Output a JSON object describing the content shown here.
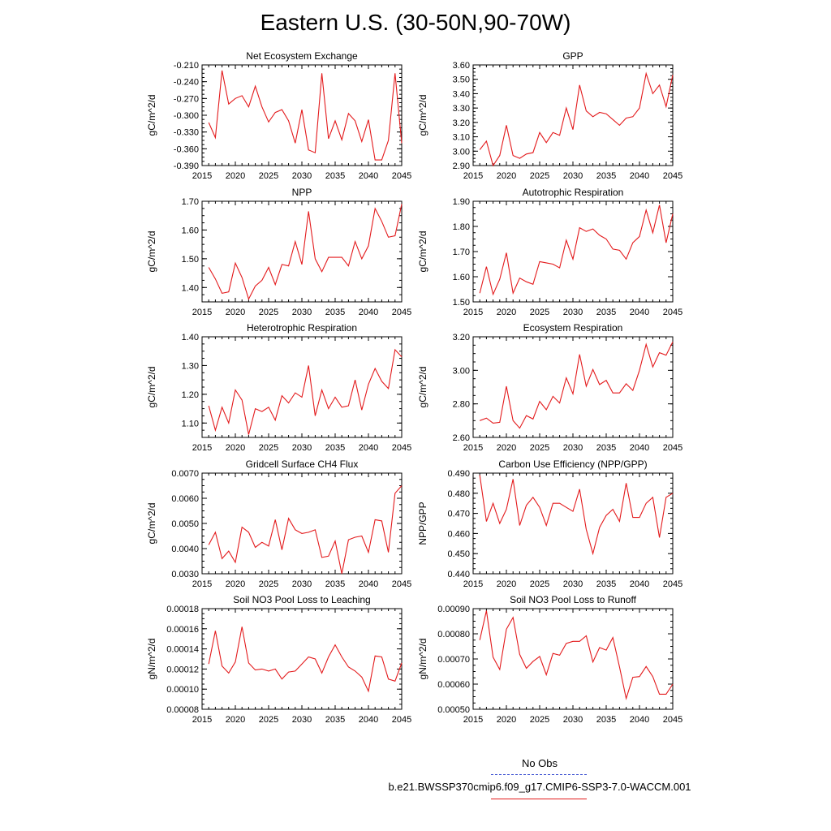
{
  "title": "Eastern U.S. (30-50N,90-70W)",
  "legend": {
    "obs_label": "No Obs",
    "run_label": "b.e21.BWSSP370cmip6.f09_g17.CMIP6-SSP3-7.0-WACCM.001",
    "obs_color": "#3a4fd0",
    "run_color": "#e31a1c"
  },
  "chart_data": [
    {
      "type": "line",
      "title": "Net Ecosystem Exchange",
      "ylabel": "gC/m^2/d",
      "xlim": [
        2015,
        2045
      ],
      "ylim": [
        -0.39,
        -0.21
      ],
      "xticks": [
        "2015",
        "2020",
        "2025",
        "2030",
        "2035",
        "2040",
        "2045"
      ],
      "yticks": [
        "-0.390",
        "-0.360",
        "-0.330",
        "-0.300",
        "-0.270",
        "-0.240",
        "-0.210"
      ],
      "x": [
        2016,
        2017,
        2018,
        2019,
        2020,
        2021,
        2022,
        2023,
        2024,
        2025,
        2026,
        2027,
        2028,
        2029,
        2030,
        2031,
        2032,
        2033,
        2034,
        2035,
        2036,
        2037,
        2038,
        2039,
        2040,
        2041,
        2042,
        2043,
        2044,
        2045
      ],
      "values": [
        -0.313,
        -0.34,
        -0.22,
        -0.28,
        -0.27,
        -0.265,
        -0.285,
        -0.248,
        -0.285,
        -0.312,
        -0.295,
        -0.29,
        -0.31,
        -0.35,
        -0.29,
        -0.362,
        -0.367,
        -0.225,
        -0.342,
        -0.31,
        -0.344,
        -0.297,
        -0.31,
        -0.347,
        -0.308,
        -0.38,
        -0.38,
        -0.345,
        -0.225,
        -0.35
      ]
    },
    {
      "type": "line",
      "title": "GPP",
      "ylabel": "gC/m^2/d",
      "xlim": [
        2015,
        2045
      ],
      "ylim": [
        2.9,
        3.6
      ],
      "xticks": [
        "2015",
        "2020",
        "2025",
        "2030",
        "2035",
        "2040",
        "2045"
      ],
      "yticks": [
        "2.90",
        "3.00",
        "3.10",
        "3.20",
        "3.30",
        "3.40",
        "3.50",
        "3.60"
      ],
      "x": [
        2016,
        2017,
        2018,
        2019,
        2020,
        2021,
        2022,
        2023,
        2024,
        2025,
        2026,
        2027,
        2028,
        2029,
        2030,
        2031,
        2032,
        2033,
        2034,
        2035,
        2036,
        2037,
        2038,
        2039,
        2040,
        2041,
        2042,
        2043,
        2044,
        2045
      ],
      "values": [
        3.01,
        3.07,
        2.9,
        2.97,
        3.18,
        2.97,
        2.95,
        2.98,
        2.99,
        3.13,
        3.06,
        3.13,
        3.11,
        3.3,
        3.15,
        3.46,
        3.28,
        3.24,
        3.27,
        3.26,
        3.22,
        3.18,
        3.23,
        3.24,
        3.3,
        3.54,
        3.4,
        3.46,
        3.31,
        3.53
      ]
    },
    {
      "type": "line",
      "title": "NPP",
      "ylabel": "gC/m^2/d",
      "xlim": [
        2015,
        2045
      ],
      "ylim": [
        1.35,
        1.7
      ],
      "xticks": [
        "2015",
        "2020",
        "2025",
        "2030",
        "2035",
        "2040",
        "2045"
      ],
      "yticks": [
        "1.40",
        "1.50",
        "1.60",
        "1.70"
      ],
      "x": [
        2016,
        2017,
        2018,
        2019,
        2020,
        2021,
        2022,
        2023,
        2024,
        2025,
        2026,
        2027,
        2028,
        2029,
        2030,
        2031,
        2032,
        2033,
        2034,
        2035,
        2036,
        2037,
        2038,
        2039,
        2040,
        2041,
        2042,
        2043,
        2044,
        2045
      ],
      "values": [
        1.47,
        1.43,
        1.38,
        1.385,
        1.485,
        1.435,
        1.36,
        1.405,
        1.425,
        1.47,
        1.41,
        1.48,
        1.475,
        1.56,
        1.48,
        1.665,
        1.5,
        1.455,
        1.505,
        1.505,
        1.505,
        1.475,
        1.56,
        1.5,
        1.545,
        1.675,
        1.63,
        1.575,
        1.58,
        1.69
      ]
    },
    {
      "type": "line",
      "title": "Autotrophic Respiration",
      "ylabel": "gC/m^2/d",
      "xlim": [
        2015,
        2045
      ],
      "ylim": [
        1.5,
        1.9
      ],
      "xticks": [
        "2015",
        "2020",
        "2025",
        "2030",
        "2035",
        "2040",
        "2045"
      ],
      "yticks": [
        "1.50",
        "1.60",
        "1.70",
        "1.80",
        "1.90"
      ],
      "x": [
        2016,
        2017,
        2018,
        2019,
        2020,
        2021,
        2022,
        2023,
        2024,
        2025,
        2026,
        2027,
        2028,
        2029,
        2030,
        2031,
        2032,
        2033,
        2034,
        2035,
        2036,
        2037,
        2038,
        2039,
        2040,
        2041,
        2042,
        2043,
        2044,
        2045
      ],
      "values": [
        1.535,
        1.64,
        1.53,
        1.59,
        1.695,
        1.535,
        1.595,
        1.58,
        1.57,
        1.66,
        1.655,
        1.65,
        1.635,
        1.745,
        1.67,
        1.795,
        1.78,
        1.79,
        1.765,
        1.75,
        1.71,
        1.705,
        1.67,
        1.735,
        1.76,
        1.865,
        1.775,
        1.885,
        1.735,
        1.85
      ]
    },
    {
      "type": "line",
      "title": "Heterotrophic Respiration",
      "ylabel": "gC/m^2/d",
      "xlim": [
        2015,
        2045
      ],
      "ylim": [
        1.05,
        1.4
      ],
      "xticks": [
        "2015",
        "2020",
        "2025",
        "2030",
        "2035",
        "2040",
        "2045"
      ],
      "yticks": [
        "1.10",
        "1.20",
        "1.30",
        "1.40"
      ],
      "x": [
        2016,
        2017,
        2018,
        2019,
        2020,
        2021,
        2022,
        2023,
        2024,
        2025,
        2026,
        2027,
        2028,
        2029,
        2030,
        2031,
        2032,
        2033,
        2034,
        2035,
        2036,
        2037,
        2038,
        2039,
        2040,
        2041,
        2042,
        2043,
        2044,
        2045
      ],
      "values": [
        1.16,
        1.075,
        1.155,
        1.1,
        1.215,
        1.18,
        1.06,
        1.15,
        1.14,
        1.155,
        1.11,
        1.195,
        1.17,
        1.205,
        1.19,
        1.3,
        1.125,
        1.215,
        1.15,
        1.19,
        1.155,
        1.16,
        1.25,
        1.145,
        1.235,
        1.29,
        1.245,
        1.22,
        1.355,
        1.33
      ]
    },
    {
      "type": "line",
      "title": "Ecosystem Respiration",
      "ylabel": "gC/m^2/d",
      "xlim": [
        2015,
        2045
      ],
      "ylim": [
        2.6,
        3.2
      ],
      "xticks": [
        "2015",
        "2020",
        "2025",
        "2030",
        "2035",
        "2040",
        "2045"
      ],
      "yticks": [
        "2.60",
        "2.80",
        "3.00",
        "3.20"
      ],
      "x": [
        2016,
        2017,
        2018,
        2019,
        2020,
        2021,
        2022,
        2023,
        2024,
        2025,
        2026,
        2027,
        2028,
        2029,
        2030,
        2031,
        2032,
        2033,
        2034,
        2035,
        2036,
        2037,
        2038,
        2039,
        2040,
        2041,
        2042,
        2043,
        2044,
        2045
      ],
      "values": [
        2.7,
        2.715,
        2.685,
        2.69,
        2.905,
        2.7,
        2.655,
        2.73,
        2.71,
        2.815,
        2.765,
        2.845,
        2.805,
        2.955,
        2.86,
        3.095,
        2.905,
        3.005,
        2.915,
        2.94,
        2.865,
        2.865,
        2.92,
        2.88,
        3.0,
        3.155,
        3.02,
        3.105,
        3.09,
        3.17
      ]
    },
    {
      "type": "line",
      "title": "Gridcell Surface CH4 Flux",
      "ylabel": "gC/m^2/d",
      "xlim": [
        2015,
        2045
      ],
      "ylim": [
        0.003,
        0.007
      ],
      "xticks": [
        "2015",
        "2020",
        "2025",
        "2030",
        "2035",
        "2040",
        "2045"
      ],
      "yticks": [
        "0.0030",
        "0.0040",
        "0.0050",
        "0.0060",
        "0.0070"
      ],
      "x": [
        2016,
        2017,
        2018,
        2019,
        2020,
        2021,
        2022,
        2023,
        2024,
        2025,
        2026,
        2027,
        2028,
        2029,
        2030,
        2031,
        2032,
        2033,
        2034,
        2035,
        2036,
        2037,
        2038,
        2039,
        2040,
        2041,
        2042,
        2043,
        2044,
        2045
      ],
      "values": [
        0.00415,
        0.00465,
        0.0036,
        0.0039,
        0.00345,
        0.00485,
        0.00465,
        0.00405,
        0.00425,
        0.0041,
        0.00515,
        0.00395,
        0.0052,
        0.00475,
        0.0046,
        0.00465,
        0.00475,
        0.00365,
        0.0037,
        0.0043,
        0.003,
        0.00435,
        0.00445,
        0.0045,
        0.00385,
        0.00515,
        0.0051,
        0.00385,
        0.0062,
        0.0065
      ]
    },
    {
      "type": "line",
      "title": "Carbon Use Efficiency (NPP/GPP)",
      "ylabel": "NPP/GPP",
      "xlim": [
        2015,
        2045
      ],
      "ylim": [
        0.44,
        0.49
      ],
      "xticks": [
        "2015",
        "2020",
        "2025",
        "2030",
        "2035",
        "2040",
        "2045"
      ],
      "yticks": [
        "0.440",
        "0.450",
        "0.460",
        "0.470",
        "0.480",
        "0.490"
      ],
      "x": [
        2016,
        2017,
        2018,
        2019,
        2020,
        2021,
        2022,
        2023,
        2024,
        2025,
        2026,
        2027,
        2028,
        2029,
        2030,
        2031,
        2032,
        2033,
        2034,
        2035,
        2036,
        2037,
        2038,
        2039,
        2040,
        2041,
        2042,
        2043,
        2044,
        2045
      ],
      "values": [
        0.489,
        0.466,
        0.475,
        0.465,
        0.472,
        0.487,
        0.464,
        0.474,
        0.478,
        0.473,
        0.464,
        0.475,
        0.475,
        0.473,
        0.471,
        0.482,
        0.462,
        0.45,
        0.463,
        0.469,
        0.472,
        0.466,
        0.485,
        0.468,
        0.468,
        0.475,
        0.478,
        0.458,
        0.478,
        0.48
      ]
    },
    {
      "type": "line",
      "title": "Soil NO3 Pool Loss to Leaching",
      "ylabel": "gN/m^2/d",
      "xlim": [
        2015,
        2045
      ],
      "ylim": [
        8e-05,
        0.00018
      ],
      "xticks": [
        "2015",
        "2020",
        "2025",
        "2030",
        "2035",
        "2040",
        "2045"
      ],
      "yticks": [
        "0.00008",
        "0.00010",
        "0.00012",
        "0.00014",
        "0.00016",
        "0.00018"
      ],
      "x": [
        2016,
        2017,
        2018,
        2019,
        2020,
        2021,
        2022,
        2023,
        2024,
        2025,
        2026,
        2027,
        2028,
        2029,
        2030,
        2031,
        2032,
        2033,
        2034,
        2035,
        2036,
        2037,
        2038,
        2039,
        2040,
        2041,
        2042,
        2043,
        2044,
        2045
      ],
      "values": [
        0.000125,
        0.000158,
        0.000123,
        0.000116,
        0.000127,
        0.000162,
        0.000126,
        0.000119,
        0.00012,
        0.000118,
        0.00012,
        0.00011,
        0.000117,
        0.000118,
        0.000125,
        0.000132,
        0.00013,
        0.000116,
        0.000132,
        0.000144,
        0.000132,
        0.000122,
        0.000118,
        0.000112,
        9.8e-05,
        0.000133,
        0.000132,
        0.00011,
        0.000108,
        0.000126
      ]
    },
    {
      "type": "line",
      "title": "Soil NO3 Pool Loss to Runoff",
      "ylabel": "gN/m^2/d",
      "xlim": [
        2015,
        2045
      ],
      "ylim": [
        0.0005,
        0.0009
      ],
      "xticks": [
        "2015",
        "2020",
        "2025",
        "2030",
        "2035",
        "2040",
        "2045"
      ],
      "yticks": [
        "0.00050",
        "0.00060",
        "0.00070",
        "0.00080",
        "0.00090"
      ],
      "x": [
        2016,
        2017,
        2018,
        2019,
        2020,
        2021,
        2022,
        2023,
        2024,
        2025,
        2026,
        2027,
        2028,
        2029,
        2030,
        2031,
        2032,
        2033,
        2034,
        2035,
        2036,
        2037,
        2038,
        2039,
        2040,
        2041,
        2042,
        2043,
        2044,
        2045
      ],
      "values": [
        0.000775,
        0.000892,
        0.000707,
        0.000658,
        0.000818,
        0.000865,
        0.000718,
        0.000663,
        0.00069,
        0.00071,
        0.000637,
        0.000722,
        0.000715,
        0.000762,
        0.00077,
        0.00077,
        0.000792,
        0.000688,
        0.000745,
        0.000735,
        0.000785,
        0.000668,
        0.000543,
        0.000627,
        0.00063,
        0.00067,
        0.00063,
        0.00056,
        0.00056,
        0.0006
      ]
    }
  ]
}
